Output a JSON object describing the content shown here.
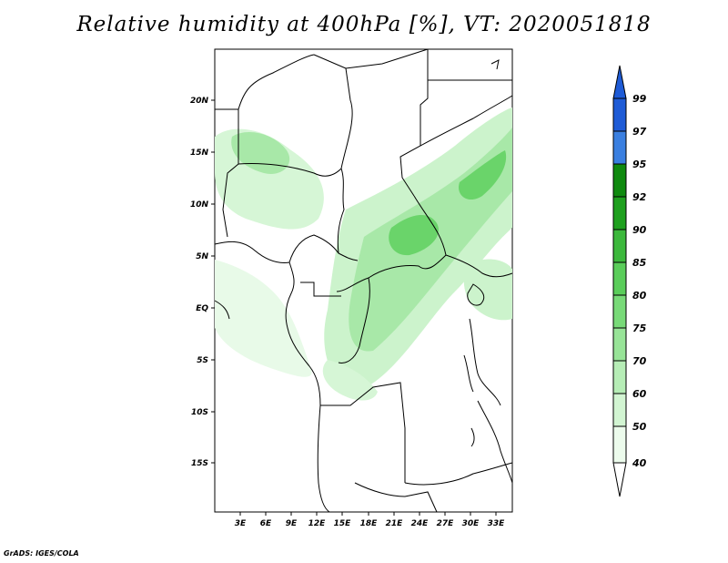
{
  "title": "Relative humidity at 400hPa [%], VT: 2020051818",
  "credit": "GrADS: IGES/COLA",
  "lat_labels": [
    "20N",
    "15N",
    "10N",
    "5N",
    "EQ",
    "5S",
    "10S",
    "15S"
  ],
  "lon_labels": [
    "3E",
    "6E",
    "9E",
    "12E",
    "15E",
    "18E",
    "21E",
    "24E",
    "27E",
    "30E",
    "33E"
  ],
  "colorbar": {
    "labels": [
      "99",
      "97",
      "95",
      "92",
      "90",
      "85",
      "80",
      "75",
      "70",
      "60",
      "50",
      "40"
    ],
    "colors": [
      "#1e5bd6",
      "#3a7fe0",
      "#5aa0ee",
      "#0f8a0f",
      "#1ea01e",
      "#3cb83c",
      "#5acd5a",
      "#78da78",
      "#98e498",
      "#b6edb6",
      "#d2f5d2",
      "#ecfbec"
    ]
  },
  "map": {
    "lon_range": [
      0,
      35
    ],
    "lat_range": [
      -20,
      25
    ],
    "field_colors": {
      "low": "#e8fae8",
      "mid": "#a8e8a8",
      "high": "#6ad46a"
    }
  }
}
